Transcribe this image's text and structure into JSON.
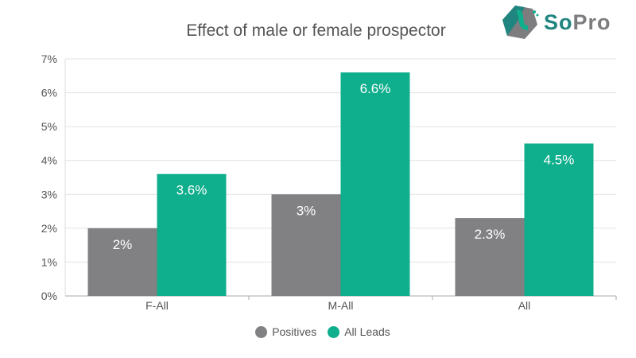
{
  "chart_data": {
    "type": "bar",
    "title": "Effect of male or female prospector",
    "categories": [
      "F-All",
      "M-All",
      "All"
    ],
    "series": [
      {
        "name": "Positives",
        "values": [
          2,
          3,
          2.3
        ],
        "labels": [
          "2%",
          "3%",
          "2.3%"
        ],
        "color": "#818184"
      },
      {
        "name": "All Leads",
        "values": [
          3.6,
          6.6,
          4.5
        ],
        "labels": [
          "3.6%",
          "6.6%",
          "4.5%"
        ],
        "color": "#0fae8c"
      }
    ],
    "ylim": [
      0,
      7
    ],
    "yticks": [
      "0%",
      "1%",
      "2%",
      "3%",
      "4%",
      "5%",
      "6%",
      "7%"
    ],
    "grid": true,
    "legend": "bottom"
  },
  "logo": {
    "text_so": "So",
    "text_pro": "Pro",
    "color_so": "#21857f",
    "color_pro": "#7d7d80"
  }
}
